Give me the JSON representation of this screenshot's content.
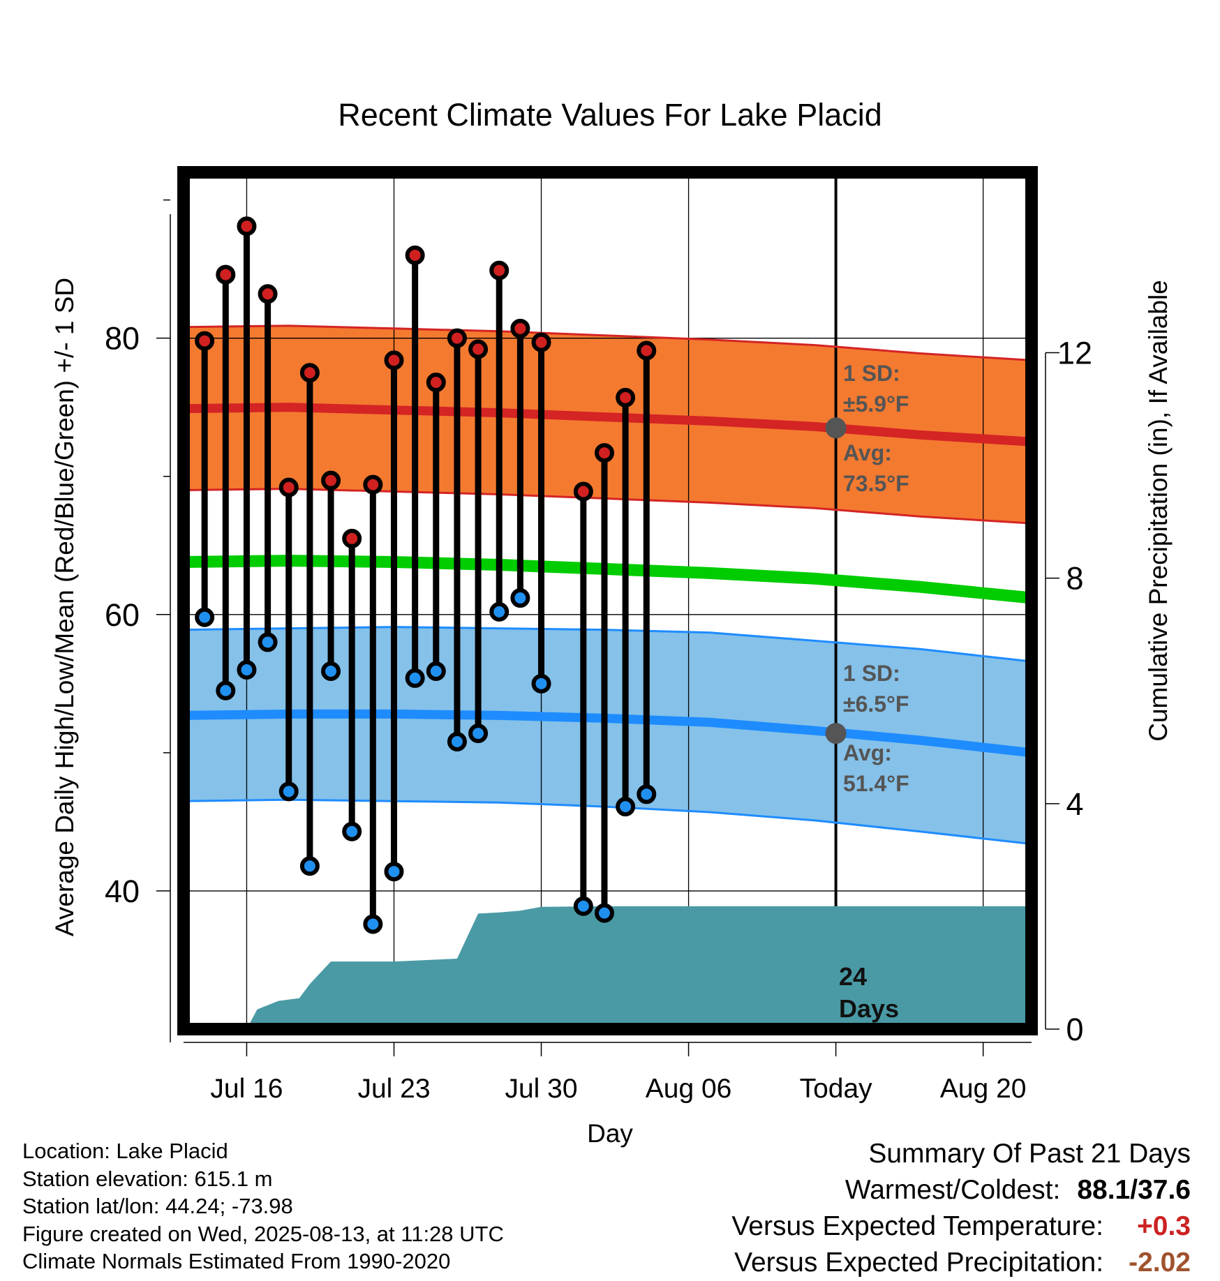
{
  "chart_data": {
    "type": "line",
    "title": "Recent Climate Values For Lake Placid",
    "xlabel": "Day",
    "ylabel": "Average Daily High/Low/Mean (Red/Blue/Green) +/- 1 SD",
    "ylabel_right": "Cumulative Precipitation (in), If Available",
    "x_ticks": [
      "Jul 16",
      "Jul 23",
      "Jul 30",
      "Aug 06",
      "Today",
      "Aug 20"
    ],
    "x_range_days": [
      0,
      40.3
    ],
    "x_tick_days": [
      3,
      10,
      17,
      24,
      31,
      38
    ],
    "today_day": 31,
    "ylim": [
      30,
      92
    ],
    "y_ticks": [
      40,
      60,
      80
    ],
    "y2lim": [
      0,
      15.2
    ],
    "y2_ticks": [
      0,
      4,
      8,
      12
    ],
    "grid": true,
    "colors": {
      "high_band": "#f47a30",
      "high_line": "#d42424",
      "low_band": "#85c1e9",
      "low_line": "#1e8cff",
      "mean_line": "#00cc00",
      "precip": "#4a9aa5",
      "high_marker": "#d02020",
      "low_marker": "#2090f0",
      "annotation": "#555555"
    },
    "observations": {
      "days": [
        1,
        2,
        3,
        4,
        5,
        6,
        7,
        8,
        9,
        10,
        11,
        12,
        13,
        14,
        15,
        16,
        17,
        19,
        20,
        21,
        22
      ],
      "high": [
        79.8,
        84.6,
        88.1,
        83.2,
        69.2,
        77.5,
        69.7,
        65.5,
        69.4,
        78.4,
        86.0,
        76.8,
        80.0,
        79.2,
        84.9,
        80.7,
        79.7,
        68.9,
        71.7,
        75.7,
        79.1
      ],
      "low": [
        59.8,
        54.5,
        56.0,
        58.0,
        47.2,
        41.8,
        55.9,
        44.3,
        37.6,
        41.4,
        55.4,
        55.9,
        50.8,
        51.4,
        60.2,
        61.2,
        55.0,
        38.9,
        38.4,
        46.1,
        47.0
      ]
    },
    "normals": {
      "days": [
        0,
        5,
        10,
        15,
        20,
        25,
        30,
        35,
        40.3
      ],
      "high_mean": [
        74.9,
        75.0,
        74.8,
        74.6,
        74.3,
        74.0,
        73.6,
        73.0,
        72.5
      ],
      "high_sd": [
        5.9,
        5.9,
        5.9,
        5.9,
        5.9,
        5.9,
        5.9,
        5.9,
        5.9
      ],
      "low_mean": [
        52.7,
        52.8,
        52.8,
        52.7,
        52.5,
        52.2,
        51.6,
        50.9,
        50.0
      ],
      "low_sd": [
        6.2,
        6.2,
        6.3,
        6.3,
        6.4,
        6.5,
        6.5,
        6.6,
        6.6
      ],
      "mean": [
        63.8,
        63.9,
        63.8,
        63.6,
        63.3,
        63.0,
        62.6,
        62.0,
        61.2
      ]
    },
    "precip_cumulative": {
      "days": [
        0,
        3,
        3.5,
        4.5,
        5.5,
        6,
        7,
        9,
        10,
        13,
        14,
        15,
        16,
        17,
        20,
        25,
        31,
        35,
        40.3
      ],
      "values": [
        0,
        0,
        0.35,
        0.5,
        0.55,
        0.8,
        1.2,
        1.2,
        1.2,
        1.25,
        2.05,
        2.07,
        2.1,
        2.17,
        2.18,
        2.18,
        2.18,
        2.18,
        2.18
      ]
    },
    "annotations": {
      "high_sd": "±5.9°F",
      "high_avg": "73.5°F",
      "low_sd": "±6.5°F",
      "low_avg": "51.4°F",
      "sd_label": "1 SD:",
      "avg_label": "Avg:",
      "days_count": "24",
      "days_word": "Days",
      "high_avg_value": 73.5,
      "low_avg_value": 51.4
    }
  },
  "footer": {
    "location": "Location: Lake Placid",
    "elevation": "Station elevation: 615.1 m",
    "latlon": "Station lat/lon: 44.24; -73.98",
    "created": "Figure created on Wed, 2025-08-13, at 11:28 UTC",
    "normals": "Climate Normals Estimated From 1990-2020"
  },
  "summary": {
    "heading": "Summary Of Past 21 Days",
    "warm_cold_label": "Warmest/Coldest:",
    "warm_cold_value": "88.1/37.6",
    "temp_label": "Versus Expected Temperature:",
    "temp_value": "+0.3",
    "temp_color": "#cc2222",
    "precip_label": "Versus Expected Precipitation:",
    "precip_value": "-2.02",
    "precip_color": "#a0522d"
  }
}
